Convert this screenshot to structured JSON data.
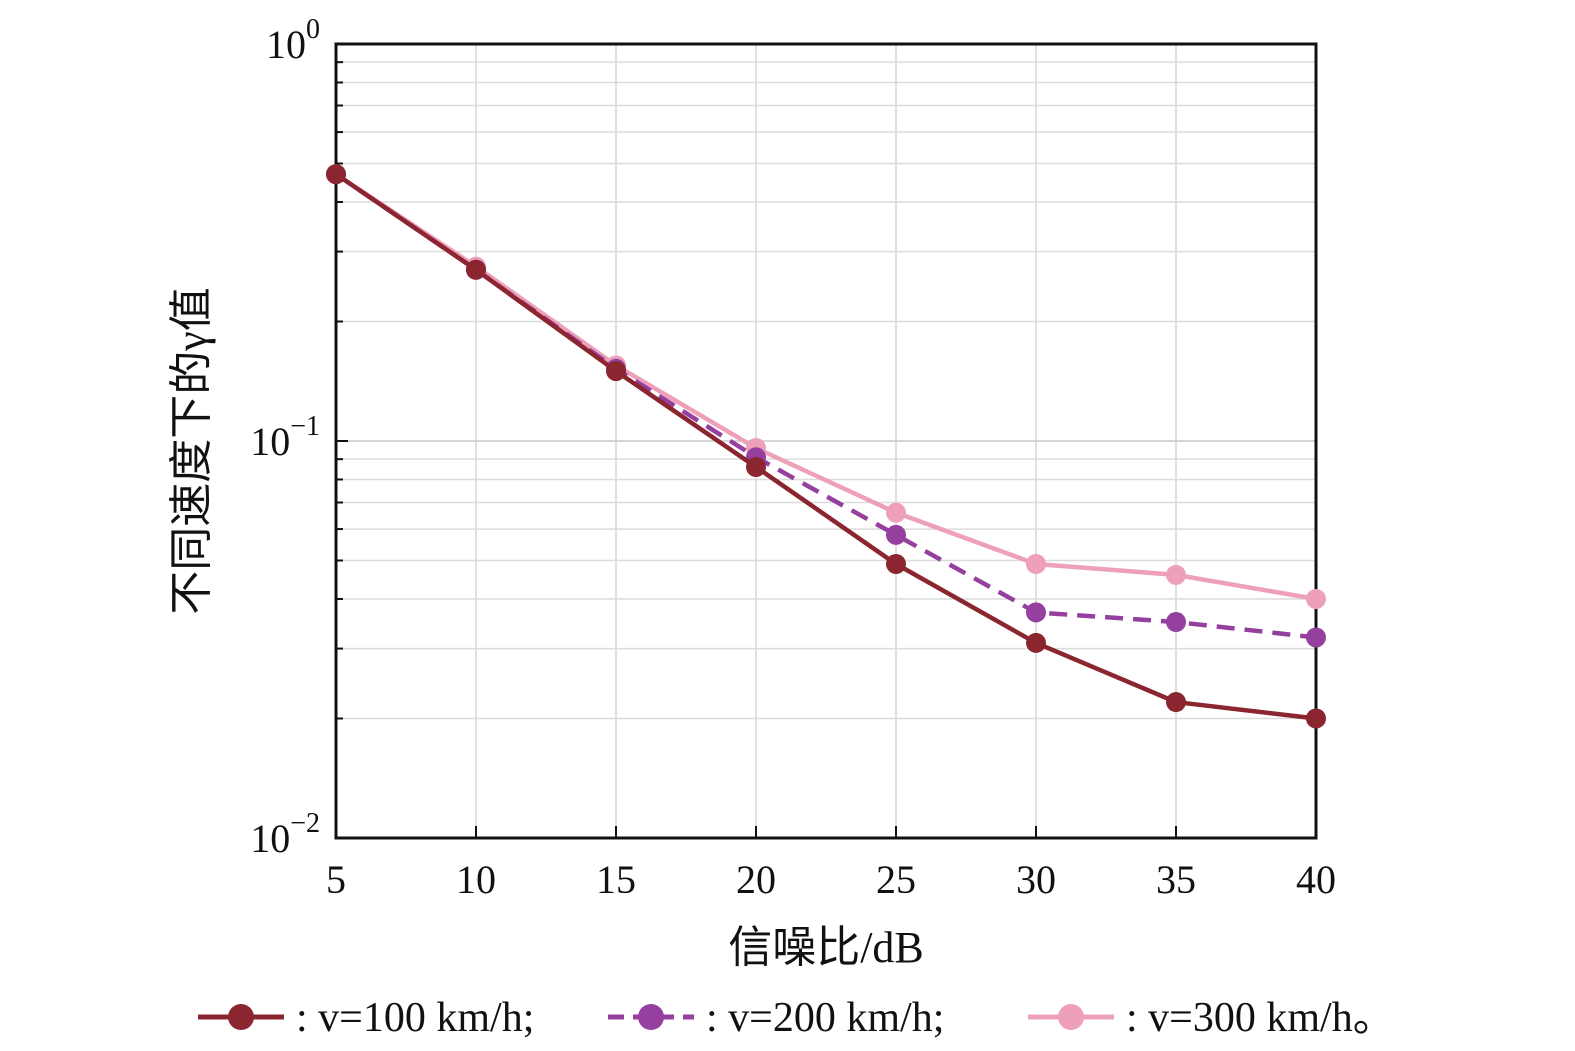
{
  "chart_data": {
    "type": "line",
    "title": "",
    "xlabel": "信噪比/dB",
    "ylabel": "不同速度下的γ值",
    "xlim": [
      5,
      40
    ],
    "ylim": [
      0.01,
      1
    ],
    "yscale": "log",
    "grid": true,
    "legend_position": "bottom",
    "x": [
      5,
      10,
      15,
      20,
      25,
      30,
      35,
      40
    ],
    "x_tick_labels": [
      "5",
      "10",
      "15",
      "20",
      "25",
      "30",
      "35",
      "40"
    ],
    "y_ticks": [
      {
        "value": 1,
        "base": "10",
        "exp": "0"
      },
      {
        "value": 0.1,
        "base": "10",
        "exp": "−1"
      },
      {
        "value": 0.01,
        "base": "10",
        "exp": "−2"
      }
    ],
    "series": [
      {
        "name": ": v=100 km/h;",
        "color": "#8b2630",
        "dash": "solid",
        "values": [
          0.47,
          0.27,
          0.15,
          0.086,
          0.049,
          0.031,
          0.022,
          0.02
        ]
      },
      {
        "name": ": v=200 km/h;",
        "color": "#953f9e",
        "dash": "dashed",
        "values": [
          0.47,
          0.27,
          0.152,
          0.091,
          0.058,
          0.037,
          0.035,
          0.032
        ]
      },
      {
        "name": ": v=300 km/h。",
        "color": "#eea0b8",
        "dash": "solid",
        "values": [
          0.47,
          0.275,
          0.155,
          0.096,
          0.066,
          0.049,
          0.046,
          0.04
        ]
      }
    ]
  }
}
